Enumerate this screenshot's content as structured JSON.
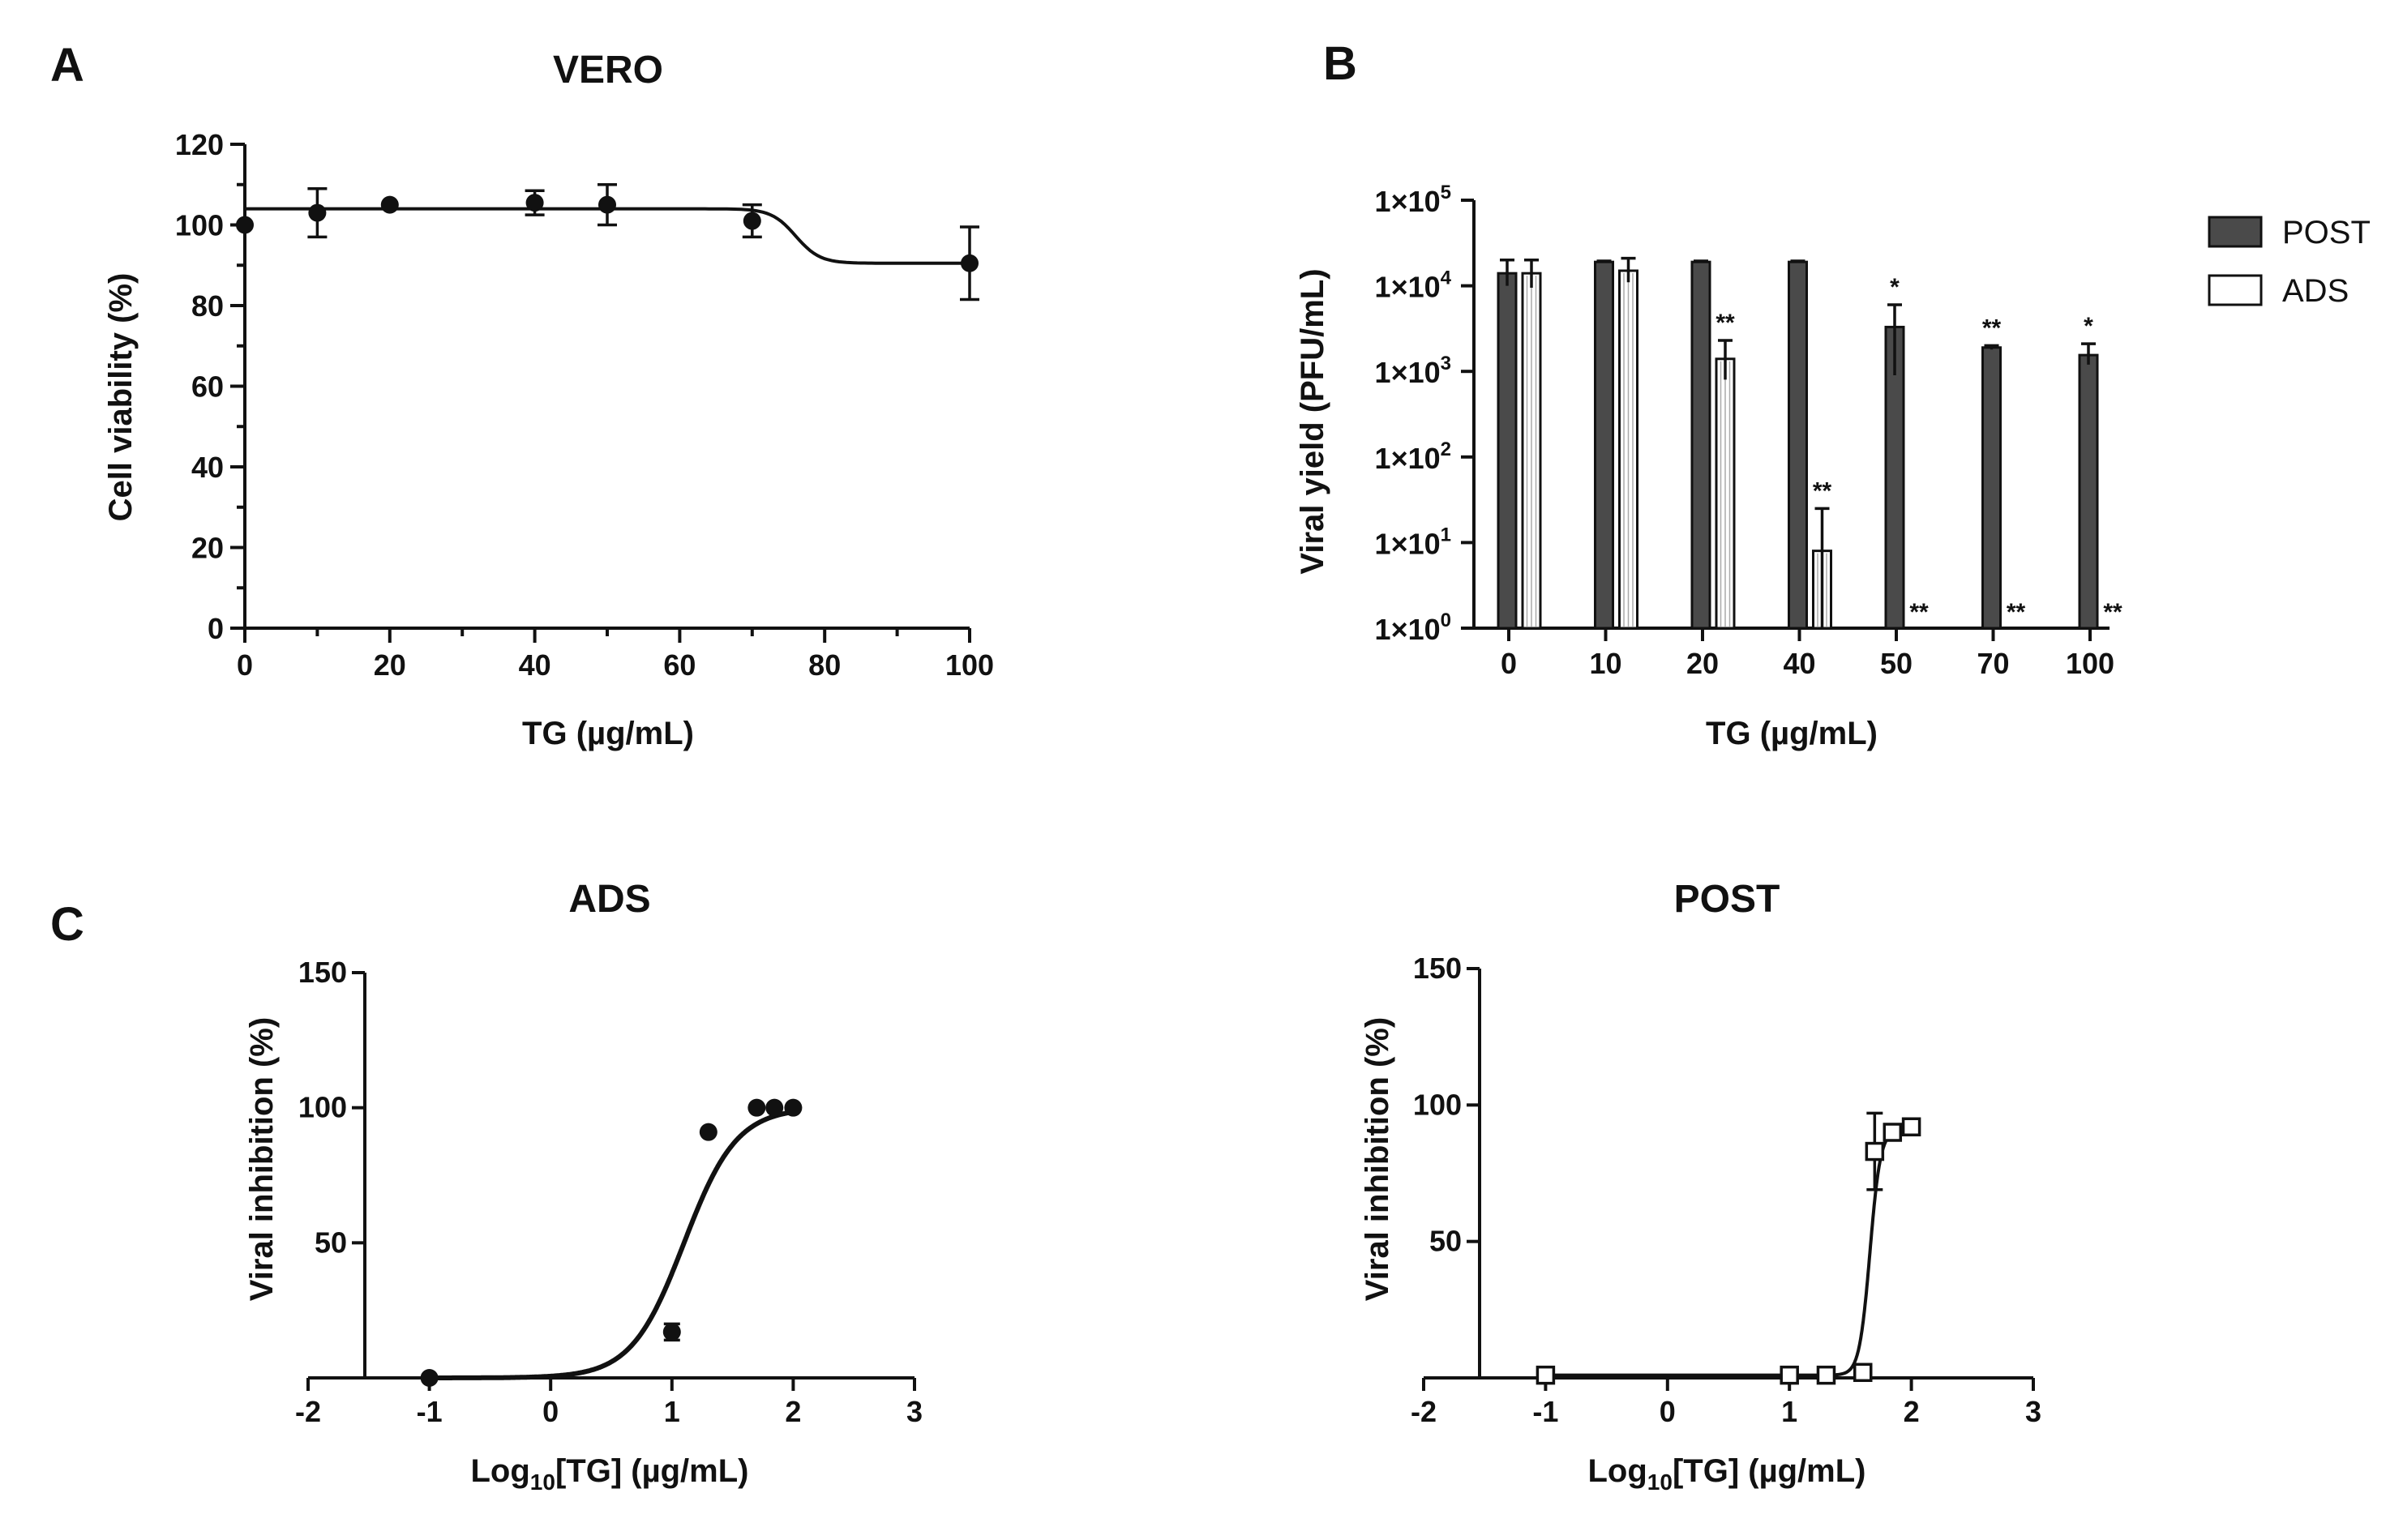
{
  "panels": {
    "a_label": "A",
    "b_label": "B",
    "c_label": "C"
  },
  "chart_data": [
    {
      "id": "A",
      "type": "scatter",
      "title": "VERO",
      "xlabel": "TG (µg/mL)",
      "ylabel": "Cell viability (%)",
      "xlim": [
        0,
        100
      ],
      "ylim": [
        0,
        120
      ],
      "xticks": [
        "0",
        "20",
        "40",
        "60",
        "80",
        "100"
      ],
      "yticks": [
        "0",
        "20",
        "40",
        "60",
        "80",
        "100",
        "120"
      ],
      "series": [
        {
          "x": [
            0,
            10,
            20,
            40,
            50,
            70,
            100
          ],
          "y": [
            100,
            103,
            105,
            105.5,
            105,
            101,
            90.5
          ],
          "err": [
            0,
            6,
            0,
            3,
            5,
            4,
            9
          ]
        }
      ],
      "fit": {
        "top": 104,
        "bottom": 90.5,
        "mid": 76,
        "slope": 0.6
      },
      "color": "#111111"
    },
    {
      "id": "B",
      "type": "bar",
      "xlabel": "TG (µg/mL)",
      "ylabel": "Viral yield (PFU/mL)",
      "yscale": "log",
      "ylim": [
        1,
        100000
      ],
      "categories": [
        "0",
        "10",
        "20",
        "40",
        "50",
        "70",
        "100"
      ],
      "yticks": [
        {
          "base": "1×10",
          "exp": "0"
        },
        {
          "base": "1×10",
          "exp": "1"
        },
        {
          "base": "1×10",
          "exp": "2"
        },
        {
          "base": "1×10",
          "exp": "3"
        },
        {
          "base": "1×10",
          "exp": "4"
        },
        {
          "base": "1×10",
          "exp": "5"
        }
      ],
      "series": [
        {
          "name": "POST",
          "color": "#4a4a4a",
          "values": [
            14000,
            19000,
            19000,
            19000,
            3300,
            1900,
            1550
          ],
          "err_hi": [
            20000,
            19500,
            19500,
            19500,
            6000,
            2000,
            2100
          ],
          "err_lo": [
            10000,
            18500,
            18500,
            18500,
            900,
            1800,
            1200
          ],
          "stars": [
            "",
            "",
            "",
            "",
            "*",
            "**",
            "*"
          ]
        },
        {
          "name": "ADS",
          "color": "#ffffff",
          "values": [
            14000,
            15000,
            1400,
            8,
            1,
            1,
            1
          ],
          "err_hi": [
            20000,
            21000,
            2300,
            25,
            1,
            1,
            1
          ],
          "err_lo": [
            9500,
            11000,
            800,
            1,
            1,
            1,
            1
          ],
          "stars": [
            "",
            "",
            "**",
            "**",
            "**",
            "**",
            "**"
          ]
        }
      ],
      "legend": [
        "POST",
        "ADS"
      ],
      "legend_position": "right"
    },
    {
      "id": "C1",
      "type": "scatter",
      "title": "ADS",
      "xlabel_main": "Log",
      "xlabel_sub": "10",
      "xlabel_tail": "[TG] (µg/mL)",
      "ylabel": "Viral inhibition (%)",
      "xlim": [
        -2,
        3
      ],
      "ylim": [
        0,
        150
      ],
      "xticks": [
        "-2",
        "-1",
        "0",
        "1",
        "2",
        "3"
      ],
      "yticks": [
        "50",
        "100",
        "150"
      ],
      "marker": "circle",
      "series": [
        {
          "x": [
            -1,
            1,
            1.301,
            1.699,
            1.845,
            2
          ],
          "y": [
            0,
            17,
            91,
            100,
            100,
            100
          ],
          "err": [
            0,
            3,
            0,
            0,
            0,
            0
          ]
        }
      ],
      "fit": {
        "bottom": 0,
        "top": 100,
        "logec50": 1.1,
        "hill": 8
      }
    },
    {
      "id": "C2",
      "type": "scatter",
      "title": "POST",
      "xlabel_main": "Log",
      "xlabel_sub": "10",
      "xlabel_tail": "[TG] (µg/mL)",
      "ylabel": "Viral inhibition (%)",
      "xlim": [
        -2,
        3
      ],
      "ylim": [
        0,
        150
      ],
      "xticks": [
        "-2",
        "-1",
        "0",
        "1",
        "2",
        "3"
      ],
      "yticks": [
        "50",
        "100",
        "150"
      ],
      "marker": "square",
      "series": [
        {
          "x": [
            -1,
            1,
            1.301,
            1.602,
            1.699,
            1.845,
            2
          ],
          "y": [
            1,
            1,
            1,
            2,
            83,
            90,
            92
          ],
          "err": [
            0,
            0,
            0,
            0,
            14,
            0,
            0
          ]
        }
      ],
      "fit": {
        "bottom": 1,
        "top": 91,
        "logec50": 1.66,
        "hill": 40
      }
    }
  ]
}
